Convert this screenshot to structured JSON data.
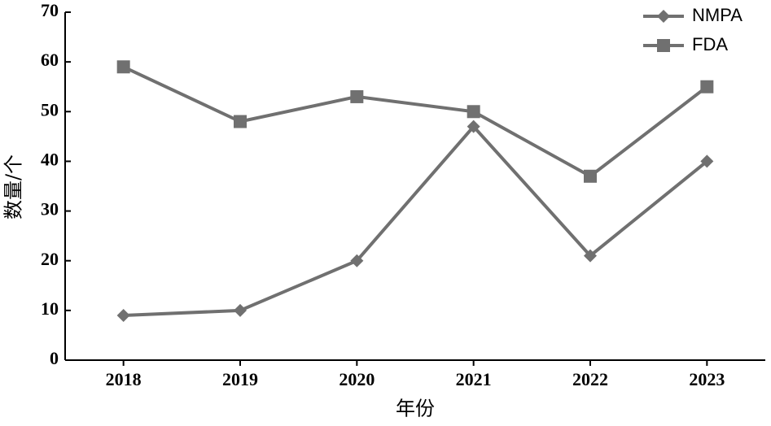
{
  "chart_data": {
    "type": "line",
    "xlabel": "年份",
    "ylabel": "数量/个",
    "categories": [
      "2018",
      "2019",
      "2020",
      "2021",
      "2022",
      "2023"
    ],
    "series": [
      {
        "name": "NMPA",
        "color": "#707070",
        "marker": "diamond",
        "values": [
          9,
          10,
          20,
          47,
          21,
          40
        ]
      },
      {
        "name": "FDA",
        "color": "#707070",
        "marker": "square",
        "values": [
          59,
          48,
          53,
          50,
          37,
          55
        ]
      }
    ],
    "ylim": [
      0,
      70
    ],
    "yticks": [
      0,
      10,
      20,
      30,
      40,
      50,
      60,
      70
    ],
    "legend": "upper right"
  }
}
